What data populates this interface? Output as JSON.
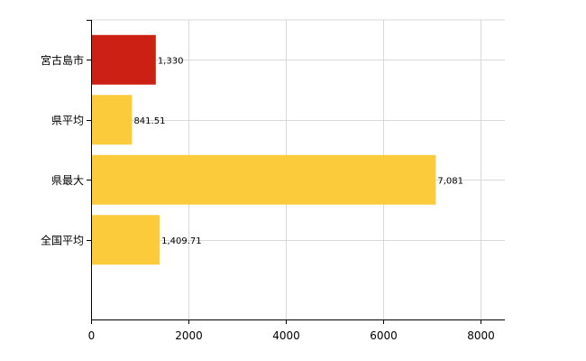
{
  "chart_data": {
    "type": "bar",
    "orientation": "horizontal",
    "categories": [
      "宮古島市",
      "県平均",
      "県最大",
      "全国平均"
    ],
    "values": [
      1330,
      841.51,
      7081,
      1409.71
    ],
    "value_labels": [
      "1,330",
      "841.51",
      "7,081",
      "1,409.71"
    ],
    "bar_colors": [
      "#cc2014",
      "#fccb3c",
      "#fccb3c",
      "#fccb3c"
    ],
    "xlim": [
      0,
      8500
    ],
    "xticks": [
      0,
      2000,
      4000,
      6000,
      8000
    ],
    "xtick_labels": [
      "0",
      "2000",
      "4000",
      "6000",
      "8000"
    ],
    "grid": true,
    "title": "",
    "xlabel": "",
    "ylabel": ""
  }
}
